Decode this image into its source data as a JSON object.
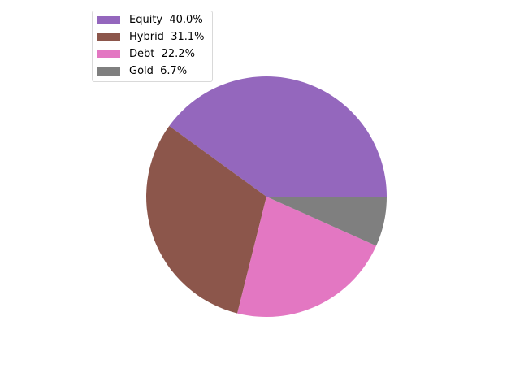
{
  "chart_data": {
    "type": "pie",
    "slices": [
      {
        "label": "Equity",
        "value": 40.0,
        "pct_label": "40.0%",
        "color": "#9467bd"
      },
      {
        "label": "Hybrid",
        "value": 31.1,
        "pct_label": "31.1%",
        "color": "#8c564b"
      },
      {
        "label": "Debt",
        "value": 22.2,
        "pct_label": "22.2%",
        "color": "#e377c2"
      },
      {
        "label": "Gold",
        "value": 6.7,
        "pct_label": "6.7%",
        "color": "#7f7f7f"
      }
    ],
    "start_angle_deg": 0,
    "direction": "counterclockwise",
    "legend_position": "upper-left"
  }
}
